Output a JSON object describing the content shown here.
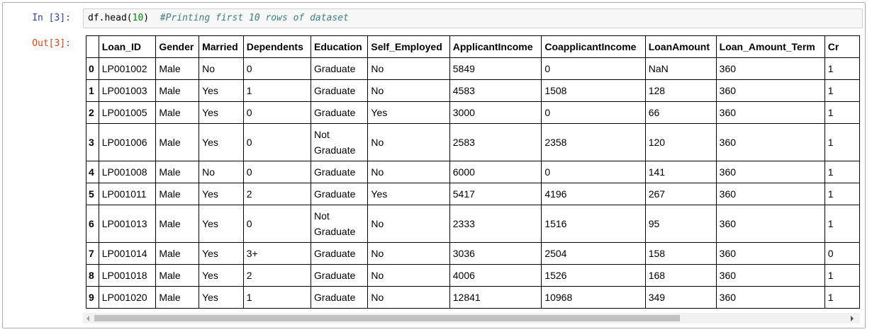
{
  "input": {
    "prompt": "In [3]:",
    "code_parts": [
      "df.head(",
      "10",
      ")"
    ],
    "comment": "#Printing first 10 rows of dataset"
  },
  "output": {
    "prompt": "Out[3]:",
    "table": {
      "columns": [
        "",
        "Loan_ID",
        "Gender",
        "Married",
        "Dependents",
        "Education",
        "Self_Employed",
        "ApplicantIncome",
        "CoapplicantIncome",
        "LoanAmount",
        "Loan_Amount_Term",
        "Cr"
      ],
      "rows": [
        [
          "0",
          "LP001002",
          "Male",
          "No",
          "0",
          "Graduate",
          "No",
          "5849",
          "0",
          "NaN",
          "360",
          "1"
        ],
        [
          "1",
          "LP001003",
          "Male",
          "Yes",
          "1",
          "Graduate",
          "No",
          "4583",
          "1508",
          "128",
          "360",
          "1"
        ],
        [
          "2",
          "LP001005",
          "Male",
          "Yes",
          "0",
          "Graduate",
          "Yes",
          "3000",
          "0",
          "66",
          "360",
          "1"
        ],
        [
          "3",
          "LP001006",
          "Male",
          "Yes",
          "0",
          "Not Graduate",
          "No",
          "2583",
          "2358",
          "120",
          "360",
          "1"
        ],
        [
          "4",
          "LP001008",
          "Male",
          "No",
          "0",
          "Graduate",
          "No",
          "6000",
          "0",
          "141",
          "360",
          "1"
        ],
        [
          "5",
          "LP001011",
          "Male",
          "Yes",
          "2",
          "Graduate",
          "Yes",
          "5417",
          "4196",
          "267",
          "360",
          "1"
        ],
        [
          "6",
          "LP001013",
          "Male",
          "Yes",
          "0",
          "Not Graduate",
          "No",
          "2333",
          "1516",
          "95",
          "360",
          "1"
        ],
        [
          "7",
          "LP001014",
          "Male",
          "Yes",
          "3+",
          "Graduate",
          "No",
          "3036",
          "2504",
          "158",
          "360",
          "0"
        ],
        [
          "8",
          "LP001018",
          "Male",
          "Yes",
          "2",
          "Graduate",
          "No",
          "4006",
          "1526",
          "168",
          "360",
          "1"
        ],
        [
          "9",
          "LP001020",
          "Male",
          "Yes",
          "1",
          "Graduate",
          "No",
          "12841",
          "10968",
          "349",
          "360",
          "1"
        ]
      ]
    }
  }
}
